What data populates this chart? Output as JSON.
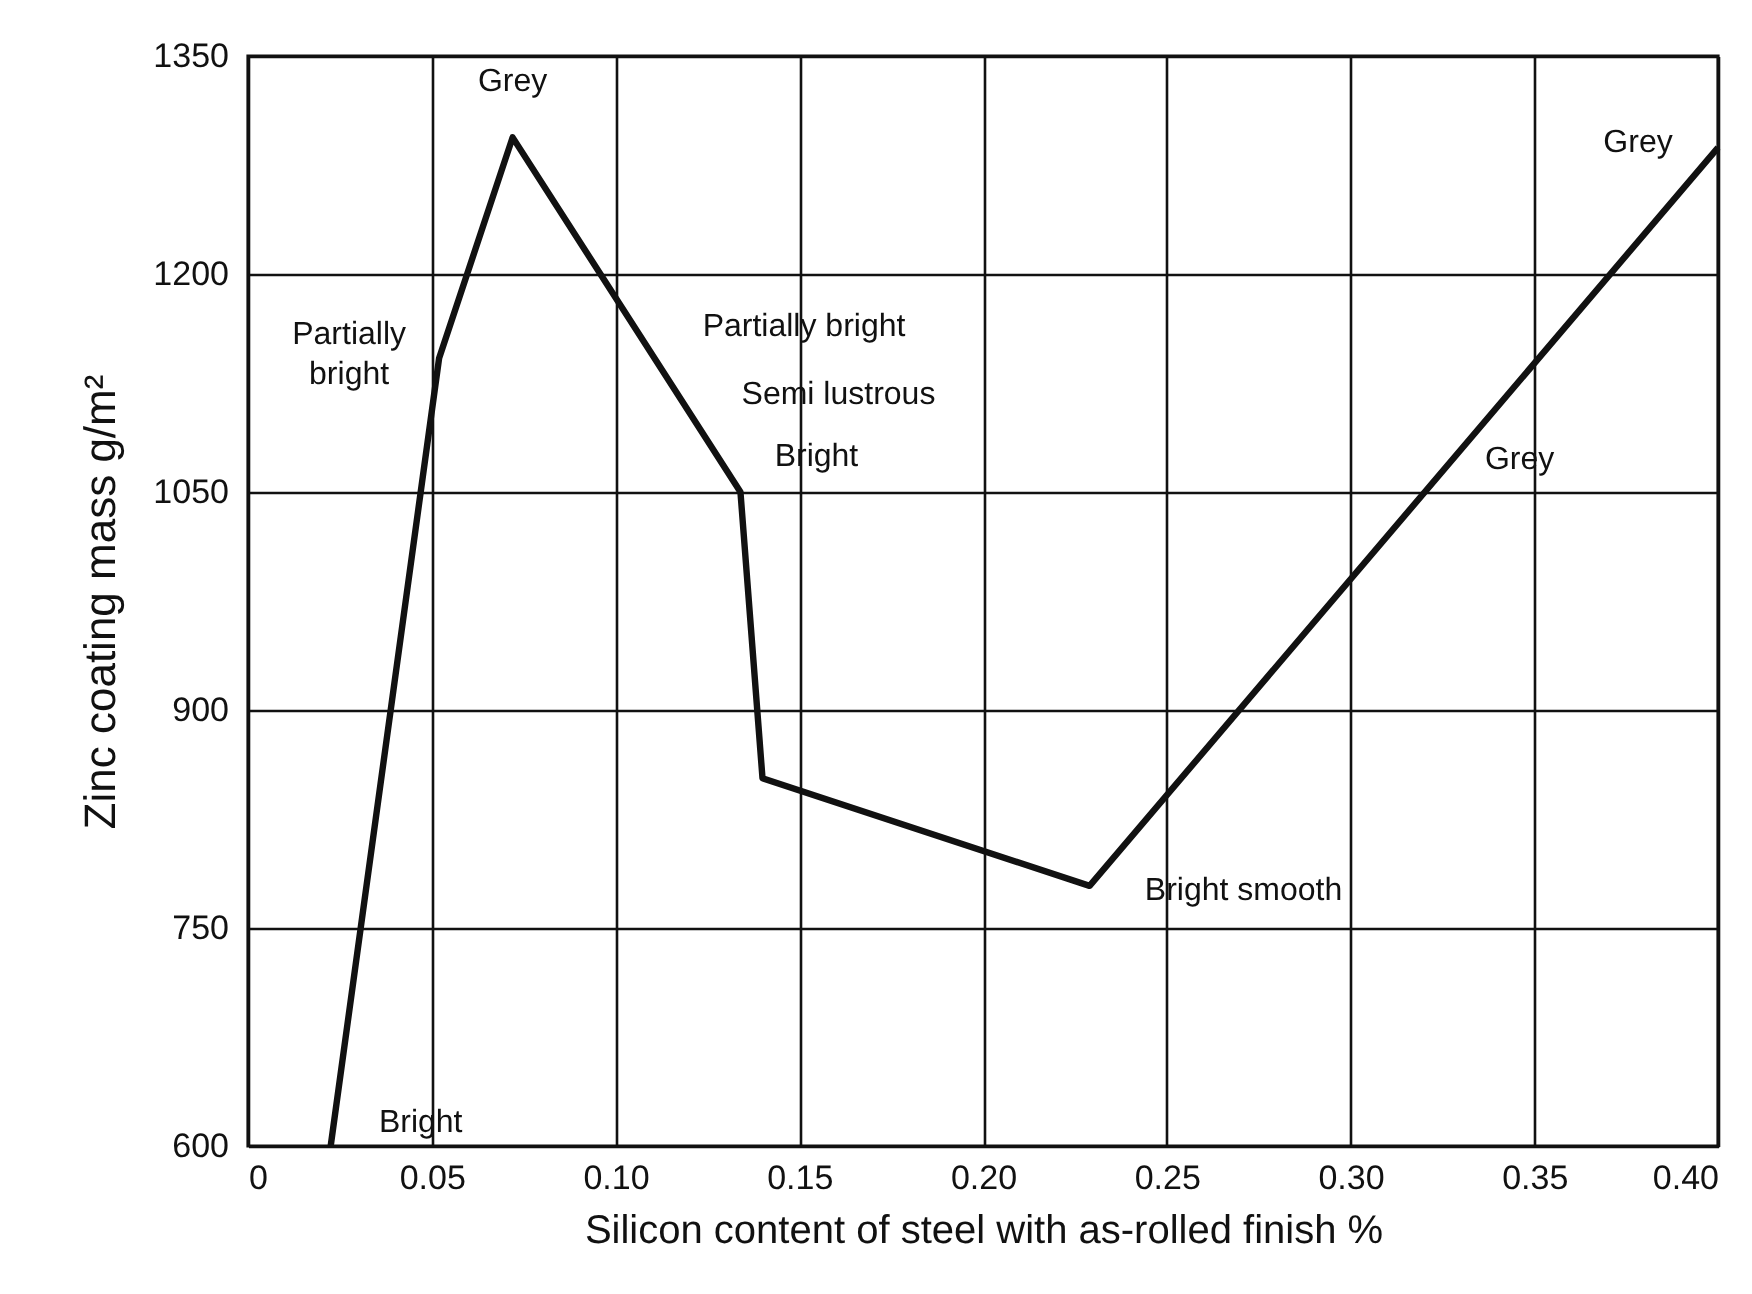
{
  "chart_data": {
    "type": "line",
    "xlabel": "Silicon content of steel with as-rolled finish %",
    "ylabel": "Zinc coating mass g/m²",
    "x": [
      0.0225,
      0.052,
      0.072,
      0.134,
      0.14,
      0.229,
      0.4
    ],
    "series": [
      {
        "color": "#111111",
        "values": [
          600,
          1142,
          1294,
          1050,
          853,
          779,
          1287
        ]
      }
    ],
    "xlim": [
      0,
      0.4
    ],
    "xticks": [
      0,
      0.05,
      {
        "value": 0.1,
        "label": "0.10"
      },
      {
        "value": 0.15,
        "label": "0.15"
      },
      {
        "value": 0.2,
        "label": "0.20"
      },
      {
        "value": 0.25,
        "label": "0.25"
      },
      {
        "value": 0.3,
        "label": "0.30"
      },
      {
        "value": 0.35,
        "label": "0.35"
      },
      {
        "value": 0.4,
        "label": "0.40"
      }
    ],
    "ylim": [
      600,
      1350
    ],
    "yticks": [
      600,
      750,
      900,
      1050,
      1200,
      1350
    ],
    "grid": true,
    "marker": "none",
    "line_style": "solid",
    "annotations": [
      {
        "text": "Grey",
        "x": 0.072,
        "y": 1294
      },
      {
        "text": "Partially\nbright",
        "x": 0.052,
        "y": 1142
      },
      {
        "text": "Bright",
        "x": 0.0225,
        "y": 600
      },
      "Partially bright",
      {
        "text": "Semi lustrous",
        "x": 0.134,
        "y": 1050
      },
      {
        "text": "Bright",
        "x": 0.134,
        "y": 1050
      },
      {
        "text": "Bright smooth",
        "x": 0.229,
        "y": 779
      },
      {
        "text": "Grey",
        "x": 0.346,
        "y": 1128
      },
      {
        "text": "Grey",
        "x": 0.4,
        "y": 1287
      }
    ]
  }
}
